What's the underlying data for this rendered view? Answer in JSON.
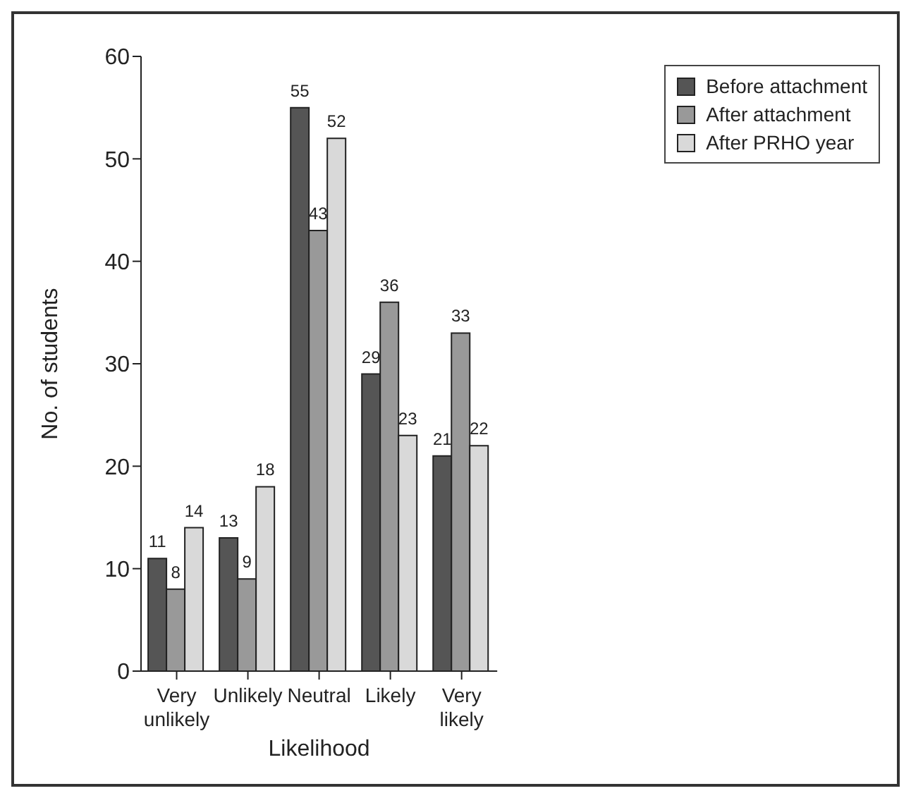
{
  "chart_data": {
    "type": "bar",
    "xlabel": "Likelihood",
    "ylabel": "No. of students",
    "categories": [
      "Very unlikely",
      "Unlikely",
      "Neutral",
      "Likely",
      "Very likely"
    ],
    "series": [
      {
        "name": "Before attachment",
        "color": "#555555",
        "values": [
          11,
          13,
          55,
          29,
          21
        ]
      },
      {
        "name": "After attachment",
        "color": "#999999",
        "values": [
          8,
          9,
          43,
          36,
          33
        ]
      },
      {
        "name": "After PRHO year",
        "color": "#d9d9d9",
        "values": [
          14,
          18,
          52,
          23,
          22
        ]
      }
    ],
    "ylim": [
      0,
      60
    ],
    "yticks": [
      0,
      10,
      20,
      30,
      40,
      50,
      60
    ],
    "grid": false,
    "legend": "top right",
    "data_labels": true
  }
}
